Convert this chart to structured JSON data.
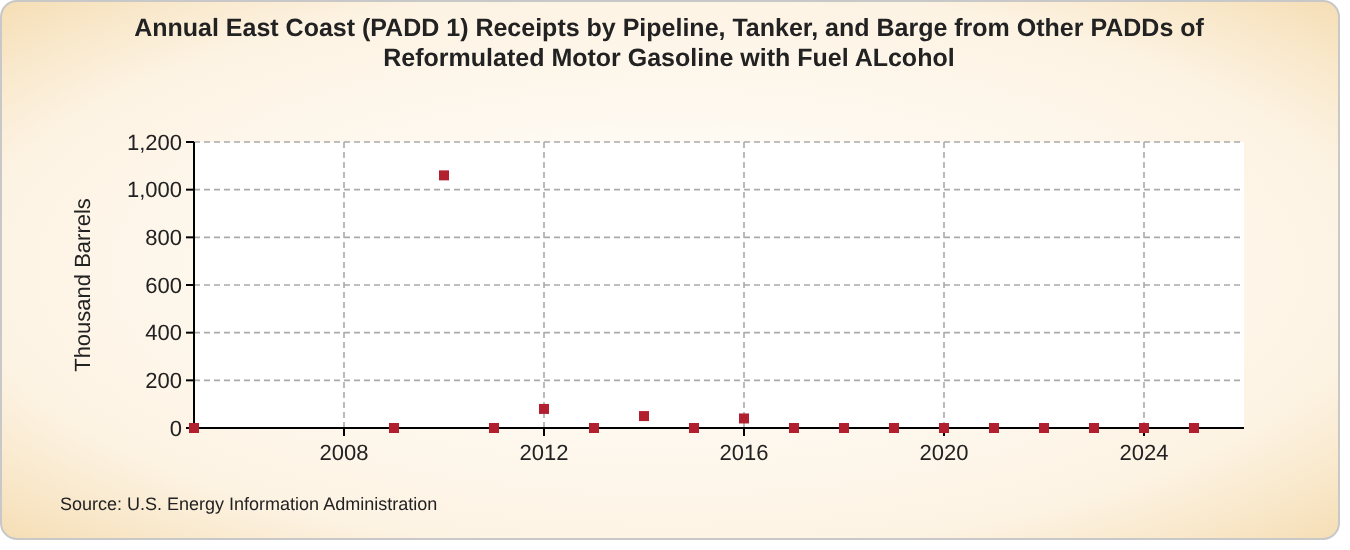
{
  "chart_data": {
    "type": "scatter",
    "title": "Annual East Coast (PADD 1) Receipts by Pipeline, Tanker, and Barge from Other PADDs of Reformulated Motor Gasoline with Fuel ALcohol",
    "ylabel": "Thousand Barrels",
    "x": [
      2005,
      2009,
      2010,
      2011,
      2012,
      2013,
      2014,
      2015,
      2016,
      2017,
      2018,
      2019,
      2020,
      2021,
      2022,
      2023,
      2024,
      2025
    ],
    "series": [
      {
        "color": "#b22030",
        "values": [
          0,
          0,
          1060,
          0,
          80,
          0,
          50,
          0,
          40,
          0,
          0,
          0,
          0,
          0,
          0,
          0,
          0,
          0
        ]
      }
    ],
    "xlim": [
      2005,
      2026
    ],
    "xticks": [
      2008,
      2012,
      2016,
      2020,
      2024
    ],
    "ylim": [
      0,
      1200
    ],
    "yticks": [
      {
        "value": 0,
        "label": "0"
      },
      {
        "value": 200,
        "label": "200"
      },
      {
        "value": 400,
        "label": "400"
      },
      {
        "value": 600,
        "label": "600"
      },
      {
        "value": 800,
        "label": "800"
      },
      {
        "value": 1000,
        "label": "1,000"
      },
      {
        "value": 1200,
        "label": "1,200"
      }
    ],
    "grid": true,
    "marker": "square",
    "annotations": [
      "Source: U.S. Energy Information Administration"
    ]
  }
}
